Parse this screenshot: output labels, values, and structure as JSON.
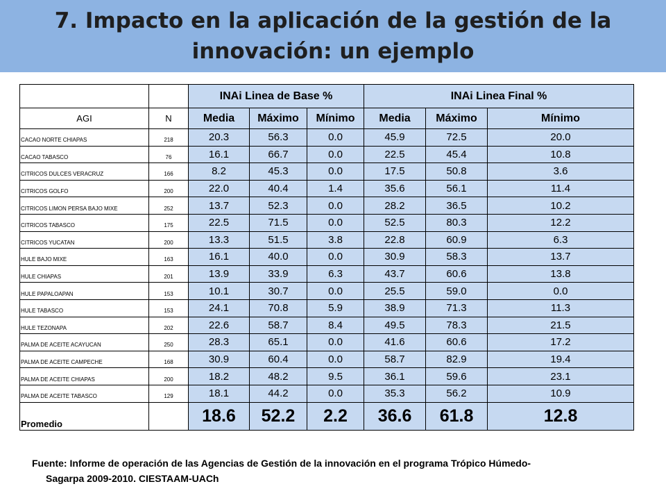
{
  "slide": {
    "title_line1": "7. Impacto en la aplicación de la gestión de la",
    "title_line2": "innovación: un ejemplo",
    "source_line1": "Fuente: Informe de operación de las Agencias de Gestión de la innovación en el programa Trópico Húmedo-",
    "source_line2": "Sagarpa 2009-2010. CIESTAAM-UACh"
  },
  "table": {
    "group_base": "INAi Linea de Base %",
    "group_final": "INAi Linea Final  %",
    "col_agi": "AGI",
    "col_n": "N",
    "stats": [
      "Media",
      "Máximo",
      "Mínimo",
      "Media",
      "Máximo",
      "Mínimo"
    ],
    "rows": [
      {
        "agi": "CACAO NORTE CHIAPAS",
        "n": "218",
        "vals": [
          "20.3",
          "56.3",
          "0.0",
          "45.9",
          "72.5",
          "20.0"
        ]
      },
      {
        "agi": "CACAO TABASCO",
        "n": "76",
        "vals": [
          "16.1",
          "66.7",
          "0.0",
          "22.5",
          "45.4",
          "10.8"
        ]
      },
      {
        "agi": "CITRICOS DULCES VERACRUZ",
        "n": "166",
        "vals": [
          "8.2",
          "45.3",
          "0.0",
          "17.5",
          "50.8",
          "3.6"
        ]
      },
      {
        "agi": "CITRICOS GOLFO",
        "n": "200",
        "vals": [
          "22.0",
          "40.4",
          "1.4",
          "35.6",
          "56.1",
          "11.4"
        ]
      },
      {
        "agi": "CITRICOS LIMON PERSA BAJO MIXE",
        "n": "252",
        "vals": [
          "13.7",
          "52.3",
          "0.0",
          "28.2",
          "36.5",
          "10.2"
        ]
      },
      {
        "agi": "CITRICOS TABASCO",
        "n": "175",
        "vals": [
          "22.5",
          "71.5",
          "0.0",
          "52.5",
          "80.3",
          "12.2"
        ]
      },
      {
        "agi": "CITRICOS YUCATAN",
        "n": "200",
        "vals": [
          "13.3",
          "51.5",
          "3.8",
          "22.8",
          "60.9",
          "6.3"
        ]
      },
      {
        "agi": "HULE BAJO MIXE",
        "n": "163",
        "vals": [
          "16.1",
          "40.0",
          "0.0",
          "30.9",
          "58.3",
          "13.7"
        ]
      },
      {
        "agi": "HULE CHIAPAS",
        "n": "201",
        "vals": [
          "13.9",
          "33.9",
          "6.3",
          "43.7",
          "60.6",
          "13.8"
        ]
      },
      {
        "agi": "HULE PAPALOAPAN",
        "n": "153",
        "vals": [
          "10.1",
          "30.7",
          "0.0",
          "25.5",
          "59.0",
          "0.0"
        ]
      },
      {
        "agi": "HULE TABASCO",
        "n": "153",
        "vals": [
          "24.1",
          "70.8",
          "5.9",
          "38.9",
          "71.3",
          "11.3"
        ]
      },
      {
        "agi": "HULE TEZONAPA",
        "n": "202",
        "vals": [
          "22.6",
          "58.7",
          "8.4",
          "49.5",
          "78.3",
          "21.5"
        ]
      },
      {
        "agi": "PALMA DE ACEITE ACAYUCAN",
        "n": "250",
        "vals": [
          "28.3",
          "65.1",
          "0.0",
          "41.6",
          "60.6",
          "17.2"
        ]
      },
      {
        "agi": "PALMA DE ACEITE CAMPECHE",
        "n": "168",
        "vals": [
          "30.9",
          "60.4",
          "0.0",
          "58.7",
          "82.9",
          "19.4"
        ]
      },
      {
        "agi": "PALMA DE ACEITE CHIAPAS",
        "n": "200",
        "vals": [
          "18.2",
          "48.2",
          "9.5",
          "36.1",
          "59.6",
          "23.1"
        ]
      },
      {
        "agi": "PALMA DE ACEITE TABASCO",
        "n": "129",
        "vals": [
          "18.1",
          "44.2",
          "0.0",
          "35.3",
          "56.2",
          "10.9"
        ]
      }
    ],
    "average": {
      "label": "Promedio",
      "n": "",
      "vals": [
        "18.6",
        "52.2",
        "2.2",
        "36.6",
        "61.8",
        "12.8"
      ]
    }
  }
}
